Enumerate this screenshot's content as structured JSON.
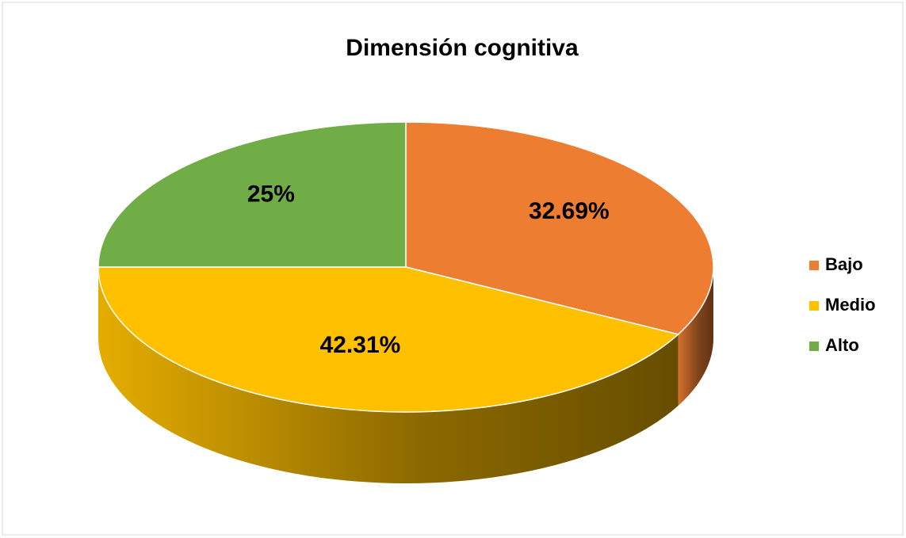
{
  "chart_data": {
    "type": "pie",
    "title": "Dimensión cognitiva",
    "categories": [
      "Bajo",
      "Medio",
      "Alto"
    ],
    "values": [
      32.69,
      42.31,
      25
    ],
    "value_labels": [
      "32.69%",
      "42.31%",
      "25%"
    ],
    "colors": [
      "#ED7D31",
      "#FFC000",
      "#70AD47"
    ],
    "legend": "right"
  }
}
